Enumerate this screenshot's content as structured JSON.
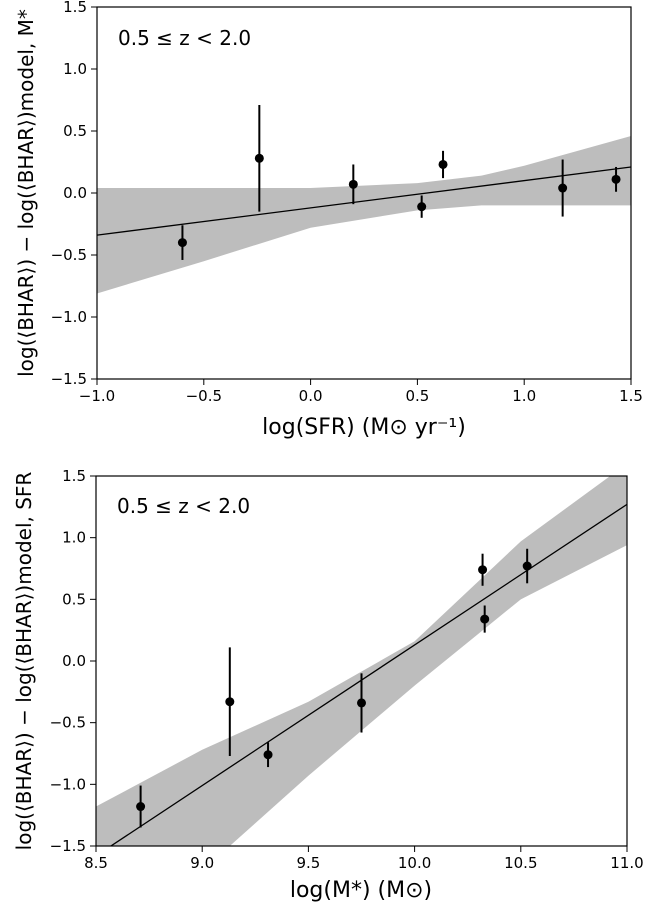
{
  "chart_data": [
    {
      "type": "scatter",
      "annotation": "0.5 ≤ z < 2.0",
      "xlabel": "log(SFR) (M⊙ yr⁻¹)",
      "ylabel": "log(⟨BHAR⟩) − log(⟨BHAR⟩)model, M*",
      "xlim": [
        -1.0,
        1.5
      ],
      "ylim": [
        -1.5,
        1.5
      ],
      "xticks": [
        -1.0,
        -0.5,
        0.0,
        0.5,
        1.0,
        1.5
      ],
      "xtick_labels": [
        "−1.0",
        "−0.5",
        "0.0",
        "0.5",
        "1.0",
        "1.5"
      ],
      "yticks": [
        -1.5,
        -1.0,
        -0.5,
        0.0,
        0.5,
        1.0,
        1.5
      ],
      "ytick_labels": [
        "−1.5",
        "−1.0",
        "−0.5",
        "0.0",
        "0.5",
        "1.0",
        "1.5"
      ],
      "grid": false,
      "points": [
        {
          "x": -0.6,
          "y": -0.4,
          "err_lo": 0.14,
          "err_hi": 0.14
        },
        {
          "x": -0.24,
          "y": 0.28,
          "err_lo": 0.43,
          "err_hi": 0.43
        },
        {
          "x": 0.2,
          "y": 0.07,
          "err_lo": 0.16,
          "err_hi": 0.16
        },
        {
          "x": 0.52,
          "y": -0.11,
          "err_lo": 0.09,
          "err_hi": 0.09
        },
        {
          "x": 0.62,
          "y": 0.23,
          "err_lo": 0.11,
          "err_hi": 0.11
        },
        {
          "x": 1.18,
          "y": 0.04,
          "err_lo": 0.23,
          "err_hi": 0.23
        },
        {
          "x": 1.43,
          "y": 0.11,
          "err_lo": 0.1,
          "err_hi": 0.1
        }
      ],
      "fit_line": {
        "x": [
          -1.0,
          1.5
        ],
        "y": [
          -0.34,
          0.21
        ]
      },
      "confidence_band": {
        "x": [
          -1.0,
          -0.5,
          0.0,
          0.5,
          0.8,
          1.0,
          1.5
        ],
        "lower": [
          -0.81,
          -0.55,
          -0.28,
          -0.14,
          -0.1,
          -0.1,
          -0.1
        ],
        "upper": [
          0.04,
          0.04,
          0.04,
          0.08,
          0.14,
          0.22,
          0.46
        ]
      }
    },
    {
      "type": "scatter",
      "annotation": "0.5 ≤ z < 2.0",
      "xlabel": "log(M*) (M⊙)",
      "ylabel": "log(⟨BHAR⟩) − log(⟨BHAR⟩)model, SFR",
      "xlim": [
        8.5,
        11.0
      ],
      "ylim": [
        -1.5,
        1.5
      ],
      "xticks": [
        8.5,
        9.0,
        9.5,
        10.0,
        10.5,
        11.0
      ],
      "xtick_labels": [
        "8.5",
        "9.0",
        "9.5",
        "10.0",
        "10.5",
        "11.0"
      ],
      "yticks": [
        -1.5,
        -1.0,
        -0.5,
        0.0,
        0.5,
        1.0,
        1.5
      ],
      "ytick_labels": [
        "−1.5",
        "−1.0",
        "−0.5",
        "0.0",
        "0.5",
        "1.0",
        "1.5"
      ],
      "grid": false,
      "points": [
        {
          "x": 8.71,
          "y": -1.18,
          "err_lo": 0.17,
          "err_hi": 0.17
        },
        {
          "x": 9.13,
          "y": -0.33,
          "err_lo": 0.44,
          "err_hi": 0.44
        },
        {
          "x": 9.31,
          "y": -0.76,
          "err_lo": 0.1,
          "err_hi": 0.1
        },
        {
          "x": 9.75,
          "y": -0.34,
          "err_lo": 0.24,
          "err_hi": 0.24
        },
        {
          "x": 10.32,
          "y": 0.74,
          "err_lo": 0.13,
          "err_hi": 0.13
        },
        {
          "x": 10.33,
          "y": 0.34,
          "err_lo": 0.11,
          "err_hi": 0.11
        },
        {
          "x": 10.53,
          "y": 0.77,
          "err_lo": 0.14,
          "err_hi": 0.14
        }
      ],
      "fit_line": {
        "x": [
          8.5,
          11.0
        ],
        "y": [
          -1.58,
          1.27
        ]
      },
      "confidence_band": {
        "x": [
          8.5,
          9.0,
          9.5,
          10.0,
          10.5,
          11.0
        ],
        "lower": [
          -1.9,
          -1.7,
          -0.93,
          -0.2,
          0.5,
          0.94
        ],
        "upper": [
          -1.18,
          -0.72,
          -0.33,
          0.16,
          0.97,
          1.6
        ]
      }
    }
  ]
}
